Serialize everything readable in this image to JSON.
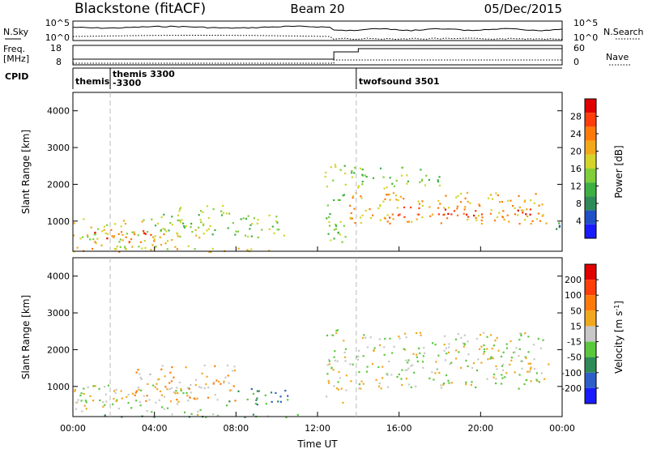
{
  "header": {
    "station": "Blackstone (fitACF)",
    "beam": "Beam 20",
    "date": "05/Dec/2015"
  },
  "summary": {
    "nsky_label": "N.Sky",
    "nsearch_label": "N.Search",
    "nsky_ticks": [
      "10^5",
      "10^0"
    ],
    "nsearch_ticks": [
      "10^5",
      "10^0"
    ],
    "freq_label": "Freq.",
    "freq_unit": "[MHz]",
    "freq_ticks": [
      "18",
      "8"
    ],
    "nave_label": "Nave",
    "nave_ticks": [
      "60",
      "0"
    ],
    "cpid_label": "CPID",
    "cpid_segments": [
      {
        "start_hour": 0.0,
        "label": "themis",
        "label2": ""
      },
      {
        "start_hour": 1.83,
        "label": "themis 3300",
        "label2": "-3300"
      },
      {
        "start_hour": 13.9,
        "label": "twofsound 3501",
        "label2": ""
      }
    ]
  },
  "chart_data": [
    {
      "type": "heatmap",
      "name": "power",
      "ylabel": "Slant Range [km]",
      "xlabel": "",
      "xlim_hours": [
        0,
        24
      ],
      "ylim": [
        180,
        4500
      ],
      "yticks": [
        1000,
        2000,
        3000,
        4000
      ],
      "colorbar": {
        "label": "Power [dB]",
        "ticks": [
          "28",
          "24",
          "20",
          "16",
          "12",
          "8",
          "4"
        ],
        "colors": [
          "#1a1aff",
          "#2050c8",
          "#2e8b57",
          "#3cb043",
          "#7fce3a",
          "#d4d42a",
          "#f2a818",
          "#ff7a0a",
          "#ff3d0a",
          "#e00000"
        ]
      },
      "scatter_regions": [
        {
          "t0": 0.0,
          "t1": 6.5,
          "r0": 250,
          "r1": 1100,
          "level": 5
        },
        {
          "t0": 1.0,
          "t1": 4.5,
          "r0": 450,
          "r1": 800,
          "level": 8
        },
        {
          "t0": 4.0,
          "t1": 8.0,
          "r0": 650,
          "r1": 1450,
          "level": 4
        },
        {
          "t0": 8.0,
          "t1": 10.5,
          "r0": 500,
          "r1": 1200,
          "level": 4
        },
        {
          "t0": 12.3,
          "t1": 13.4,
          "r0": 400,
          "r1": 2600,
          "level": 4
        },
        {
          "t0": 13.5,
          "t1": 23.3,
          "r0": 950,
          "r1": 1800,
          "level": 6
        },
        {
          "t0": 15.0,
          "t1": 22.5,
          "r0": 1100,
          "r1": 1400,
          "level": 8
        },
        {
          "t0": 13.5,
          "t1": 18.0,
          "r0": 1900,
          "r1": 2500,
          "level": 4
        },
        {
          "t0": 23.3,
          "t1": 24.0,
          "r0": 600,
          "r1": 1000,
          "level": 2
        },
        {
          "t0": 0.0,
          "t1": 11.0,
          "r0": 180,
          "r1": 280,
          "level": 6
        }
      ]
    },
    {
      "type": "heatmap",
      "name": "velocity",
      "ylabel": "Slant Range [km]",
      "xlabel": "Time UT",
      "xlim_hours": [
        0,
        24
      ],
      "xticks": [
        "00:00",
        "04:00",
        "08:00",
        "12:00",
        "16:00",
        "20:00",
        "00:00"
      ],
      "ylim": [
        180,
        4500
      ],
      "yticks": [
        1000,
        2000,
        3000,
        4000
      ],
      "colorbar": {
        "label": "Velocity [m s^-1]",
        "ticks": [
          "200",
          "100",
          "50",
          "15",
          "-15",
          "-50",
          "-100",
          "-200"
        ],
        "colors": [
          "#1a1aff",
          "#2e5fc8",
          "#2e8b57",
          "#5ac83c",
          "#c8c8c8",
          "#f0a820",
          "#ff7a0a",
          "#ff3d0a",
          "#e00000"
        ]
      },
      "scatter_regions": [
        {
          "t0": 0.0,
          "t1": 6.5,
          "r0": 250,
          "r1": 1100,
          "level": 4
        },
        {
          "t0": 3.0,
          "t1": 8.0,
          "r0": 600,
          "r1": 1600,
          "level": 5
        },
        {
          "t0": 7.5,
          "t1": 10.5,
          "r0": 500,
          "r1": 1000,
          "level": 2
        },
        {
          "t0": 12.3,
          "t1": 13.4,
          "r0": 400,
          "r1": 2600,
          "level": 4
        },
        {
          "t0": 13.5,
          "t1": 23.3,
          "r0": 950,
          "r1": 2500,
          "level": 4
        },
        {
          "t0": 0.0,
          "t1": 11.0,
          "r0": 180,
          "r1": 280,
          "level": 3
        }
      ]
    }
  ]
}
